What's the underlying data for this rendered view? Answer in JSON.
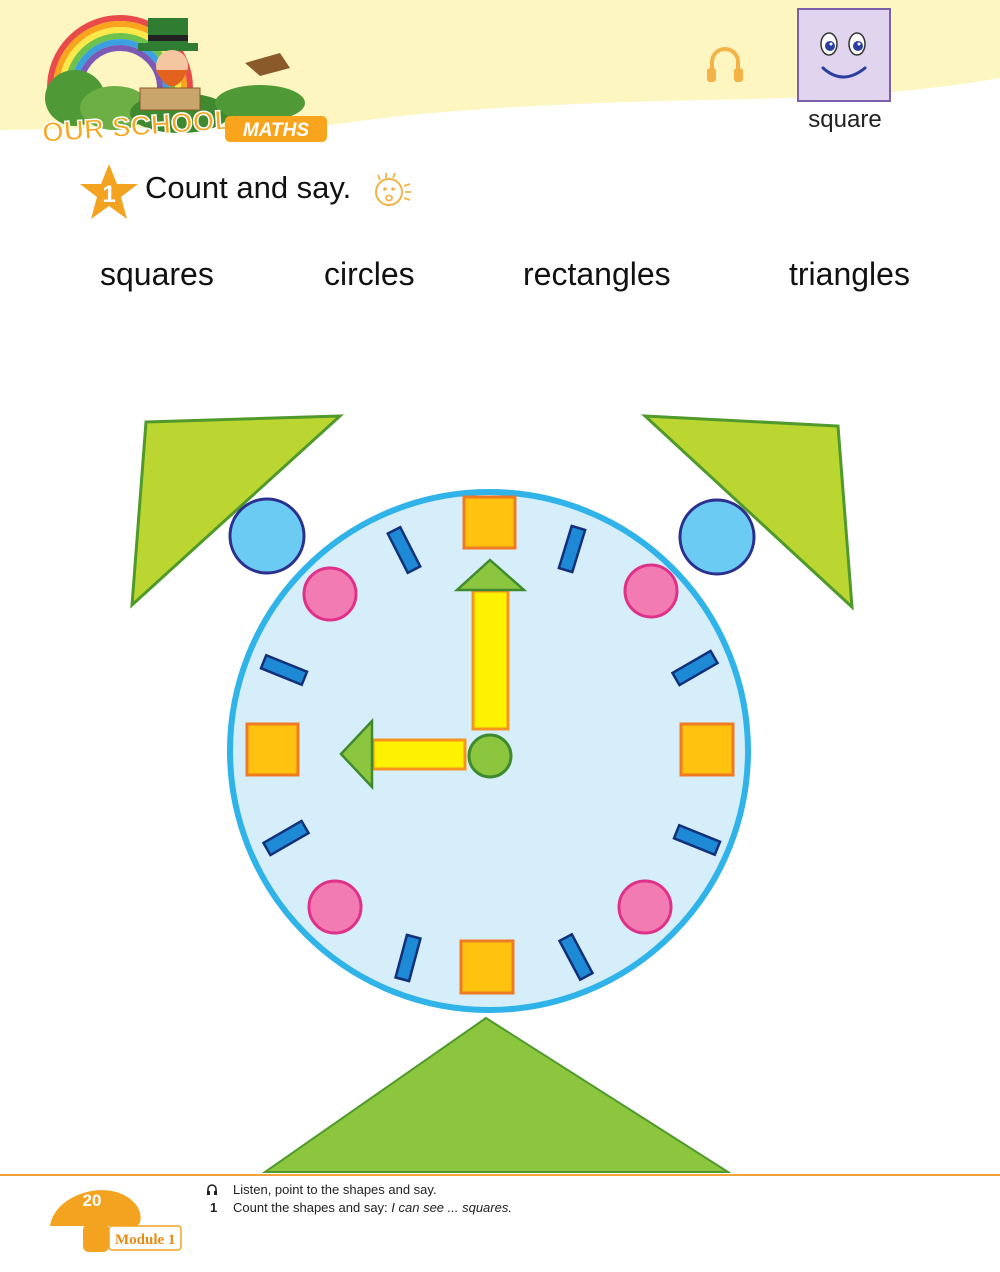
{
  "header": {
    "logo_line1": "OUR SCHOOL",
    "logo_line2": "MATHS",
    "shape_card_label": "square",
    "headphone_icon": "headphone-icon"
  },
  "task": {
    "number": "1",
    "title": "Count and say.",
    "speak_icon": "speaking-face-icon"
  },
  "shape_words": [
    "squares",
    "circles",
    "rectangles",
    "triangles"
  ],
  "clock_picture": {
    "description_counts": {
      "squares": 4,
      "circles": 7,
      "rectangles": 10,
      "triangles": 5
    }
  },
  "footer": {
    "page_number": "20",
    "module": "Module 1",
    "note_1": "Listen, point to the shapes and say.",
    "note_2_marker": "1",
    "note_2_text": "Count the shapes and say: ",
    "note_2_italic": "I can see ... squares."
  },
  "colors": {
    "header_yellow": "#fdf6c0",
    "star_orange": "#f4a321",
    "clock_face": "#d5eefa",
    "clock_rim": "#2fb3e8",
    "square_fill": "#ffc20e",
    "square_border": "#f07a22",
    "pink_circle": "#f27bb2",
    "blue_circle": "#6ccbf2",
    "tick_blue": "#1e8ad6",
    "green": "#8cc63f",
    "lime": "#bcd631",
    "hand_yellow": "#fff200"
  }
}
